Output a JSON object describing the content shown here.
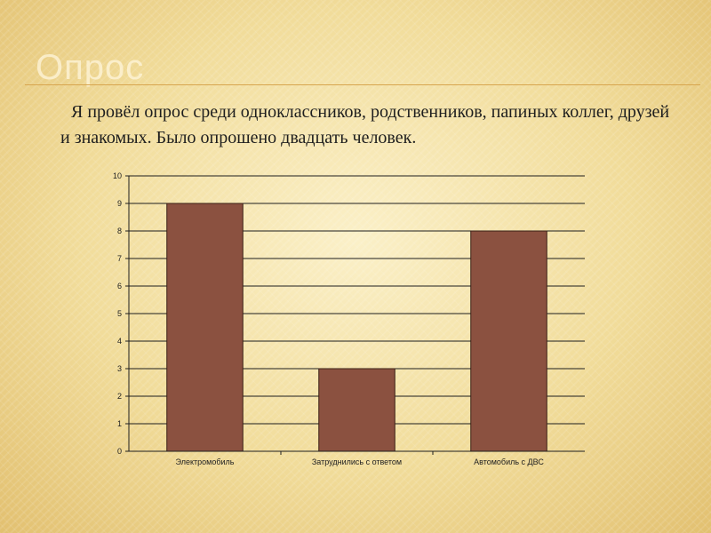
{
  "slide": {
    "title": "Опрос",
    "intro": "Я провёл опрос среди одноклассников, родственников, папиных коллег, друзей и знакомых. Было опрошено двадцать человек."
  },
  "colors": {
    "bar": "#8b5140",
    "grid": "#1e1e1e",
    "background": "#f1dc9a"
  },
  "chart_data": {
    "type": "bar",
    "categories": [
      "Электромобиль",
      "Затруднились с ответом",
      "Автомобиль с ДВС"
    ],
    "values": [
      9,
      3,
      8
    ],
    "ylim": [
      0,
      10
    ],
    "yticks": [
      0,
      1,
      2,
      3,
      4,
      5,
      6,
      7,
      8,
      9,
      10
    ],
    "grid": true,
    "legend": "none"
  }
}
